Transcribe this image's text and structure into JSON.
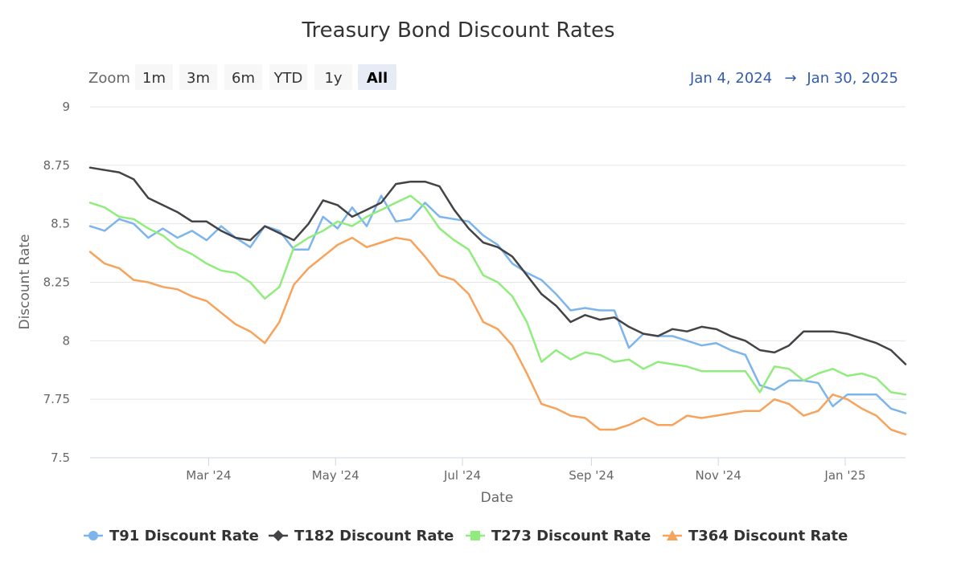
{
  "chart_data": {
    "type": "line",
    "title": "Treasury Bond Discount Rates",
    "xlabel": "Date",
    "ylabel": "Discount Rate",
    "ylim": [
      7.5,
      9
    ],
    "xlim": [
      "2024-01-04",
      "2025-01-30"
    ],
    "y_ticks": [
      {
        "value": 7.5,
        "label": "7.5"
      },
      {
        "value": 7.75,
        "label": "7.75"
      },
      {
        "value": 8,
        "label": "8"
      },
      {
        "value": 8.25,
        "label": "8.25"
      },
      {
        "value": 8.5,
        "label": "8.5"
      },
      {
        "value": 8.75,
        "label": "8.75"
      },
      {
        "value": 9,
        "label": "9"
      }
    ],
    "x_ticks": [
      {
        "value": "2024-03-01",
        "label": "Mar '24"
      },
      {
        "value": "2024-05-01",
        "label": "May '24"
      },
      {
        "value": "2024-07-01",
        "label": "Jul '24"
      },
      {
        "value": "2024-09-01",
        "label": "Sep '24"
      },
      {
        "value": "2024-11-01",
        "label": "Nov '24"
      },
      {
        "value": "2025-01-01",
        "label": "Jan '25"
      }
    ],
    "grid": true,
    "legend_position": "bottom",
    "zoom": {
      "label": "Zoom",
      "buttons": [
        "1m",
        "3m",
        "6m",
        "YTD",
        "1y",
        "All"
      ],
      "active": "All"
    },
    "range": {
      "from": "Jan 4, 2024",
      "arrow": "→",
      "to": "Jan 30, 2025"
    },
    "x": [
      "2024-01-04",
      "2024-01-11",
      "2024-01-18",
      "2024-01-25",
      "2024-02-01",
      "2024-02-08",
      "2024-02-15",
      "2024-02-22",
      "2024-02-29",
      "2024-03-07",
      "2024-03-14",
      "2024-03-21",
      "2024-03-28",
      "2024-04-04",
      "2024-04-11",
      "2024-04-18",
      "2024-04-25",
      "2024-05-02",
      "2024-05-09",
      "2024-05-16",
      "2024-05-23",
      "2024-05-30",
      "2024-06-06",
      "2024-06-13",
      "2024-06-20",
      "2024-06-27",
      "2024-07-04",
      "2024-07-11",
      "2024-07-18",
      "2024-07-25",
      "2024-08-01",
      "2024-08-08",
      "2024-08-15",
      "2024-08-22",
      "2024-08-29",
      "2024-09-05",
      "2024-09-12",
      "2024-09-19",
      "2024-09-26",
      "2024-10-03",
      "2024-10-10",
      "2024-10-17",
      "2024-10-24",
      "2024-10-31",
      "2024-11-07",
      "2024-11-14",
      "2024-11-21",
      "2024-11-28",
      "2024-12-05",
      "2024-12-12",
      "2024-12-19",
      "2024-12-26",
      "2025-01-02",
      "2025-01-09",
      "2025-01-16",
      "2025-01-23",
      "2025-01-30"
    ],
    "series": [
      {
        "name": "T91 Discount Rate",
        "color": "#7cb5ec",
        "marker": "circle",
        "values": [
          8.49,
          8.47,
          8.52,
          8.5,
          8.44,
          8.48,
          8.44,
          8.47,
          8.43,
          8.49,
          8.44,
          8.4,
          8.49,
          8.47,
          8.39,
          8.39,
          8.53,
          8.48,
          8.57,
          8.49,
          8.62,
          8.51,
          8.52,
          8.59,
          8.53,
          8.52,
          8.51,
          8.45,
          8.41,
          8.33,
          8.29,
          8.26,
          8.2,
          8.13,
          8.14,
          8.13,
          8.13,
          7.97,
          8.03,
          8.02,
          8.02,
          8.0,
          7.98,
          7.99,
          7.96,
          7.94,
          7.81,
          7.79,
          7.83,
          7.83,
          7.82,
          7.72,
          7.77,
          7.77,
          7.77,
          7.71,
          7.69
        ]
      },
      {
        "name": "T182 Discount Rate",
        "color": "#434348",
        "marker": "diamond",
        "values": [
          8.74,
          8.73,
          8.72,
          8.69,
          8.61,
          8.58,
          8.55,
          8.51,
          8.51,
          8.47,
          8.44,
          8.43,
          8.49,
          8.46,
          8.43,
          8.5,
          8.6,
          8.58,
          8.53,
          8.56,
          8.59,
          8.67,
          8.68,
          8.68,
          8.66,
          8.56,
          8.48,
          8.42,
          8.4,
          8.36,
          8.28,
          8.2,
          8.15,
          8.08,
          8.11,
          8.09,
          8.1,
          8.06,
          8.03,
          8.02,
          8.05,
          8.04,
          8.06,
          8.05,
          8.02,
          8.0,
          7.96,
          7.95,
          7.98,
          8.04,
          8.04,
          8.04,
          8.03,
          8.01,
          7.99,
          7.96,
          7.9
        ]
      },
      {
        "name": "T273 Discount Rate",
        "color": "#90ed7d",
        "marker": "square",
        "values": [
          8.59,
          8.57,
          8.53,
          8.52,
          8.48,
          8.45,
          8.4,
          8.37,
          8.33,
          8.3,
          8.29,
          8.25,
          8.18,
          8.23,
          8.4,
          8.44,
          8.47,
          8.51,
          8.49,
          8.53,
          8.56,
          8.59,
          8.62,
          8.57,
          8.48,
          8.43,
          8.39,
          8.28,
          8.25,
          8.19,
          8.08,
          7.91,
          7.96,
          7.92,
          7.95,
          7.94,
          7.91,
          7.92,
          7.88,
          7.91,
          7.9,
          7.89,
          7.87,
          7.87,
          7.87,
          7.87,
          7.78,
          7.89,
          7.88,
          7.83,
          7.86,
          7.88,
          7.85,
          7.86,
          7.84,
          7.78,
          7.77
        ]
      },
      {
        "name": "T364 Discount Rate",
        "color": "#f7a35c",
        "marker": "triangle",
        "values": [
          8.38,
          8.33,
          8.31,
          8.26,
          8.25,
          8.23,
          8.22,
          8.19,
          8.17,
          8.12,
          8.07,
          8.04,
          7.99,
          8.08,
          8.24,
          8.31,
          8.36,
          8.41,
          8.44,
          8.4,
          8.42,
          8.44,
          8.43,
          8.36,
          8.28,
          8.26,
          8.2,
          8.08,
          8.05,
          7.98,
          7.86,
          7.73,
          7.71,
          7.68,
          7.67,
          7.62,
          7.62,
          7.64,
          7.67,
          7.64,
          7.64,
          7.68,
          7.67,
          7.68,
          7.69,
          7.7,
          7.7,
          7.75,
          7.73,
          7.68,
          7.7,
          7.77,
          7.75,
          7.71,
          7.68,
          7.62,
          7.6
        ]
      }
    ]
  }
}
